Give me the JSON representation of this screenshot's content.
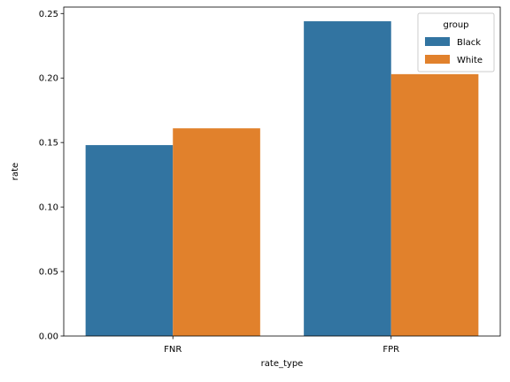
{
  "chart_data": {
    "type": "bar",
    "categories": [
      "FNR",
      "FPR"
    ],
    "series": [
      {
        "name": "Black",
        "values": [
          0.148,
          0.244
        ]
      },
      {
        "name": "White",
        "values": [
          0.161,
          0.203
        ]
      }
    ],
    "colors": [
      "#3274a1",
      "#e1812c"
    ],
    "xlabel": "rate_type",
    "ylabel": "rate",
    "ylim": [
      0,
      0.255
    ],
    "yticks": [
      0.0,
      0.05,
      0.1,
      0.15,
      0.2,
      0.25
    ],
    "ytick_labels": [
      "0.00",
      "0.05",
      "0.10",
      "0.15",
      "0.20",
      "0.25"
    ],
    "grid": false,
    "legend": {
      "title": "group",
      "placement": "top-right"
    }
  }
}
